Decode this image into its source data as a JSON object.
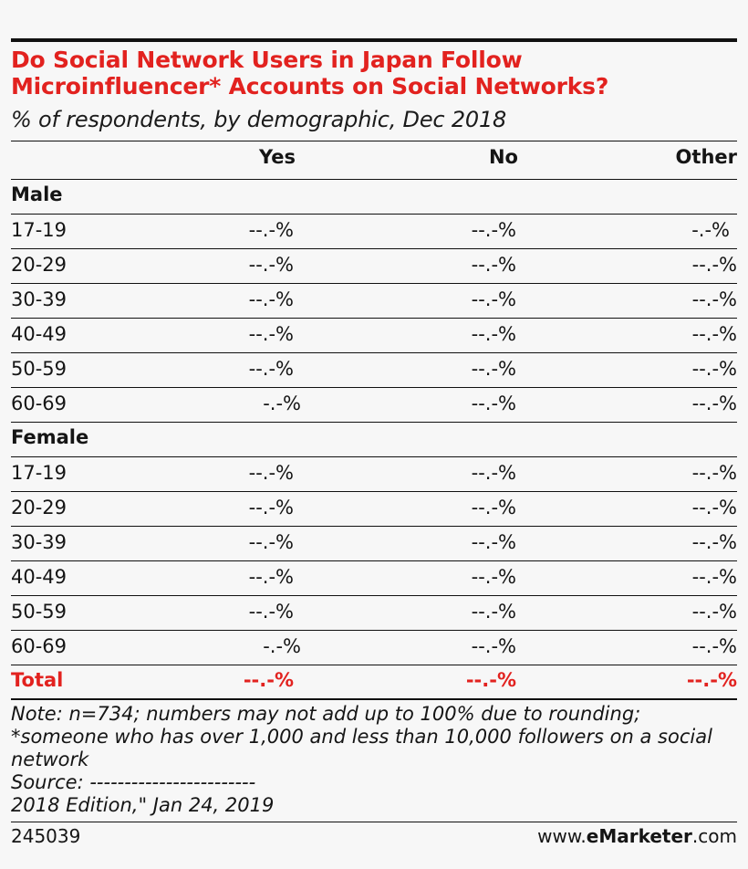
{
  "header": {
    "title": "Do Social Network Users in Japan Follow Microinfluencer* Accounts on Social Networks?",
    "subtitle": "% of respondents, by demographic, Dec 2018",
    "columns": [
      "Yes",
      "No",
      "Other"
    ]
  },
  "table": {
    "sections": [
      {
        "label": "Male",
        "rows": [
          {
            "label": "17-19",
            "values": [
              "--.-%",
              "--.-%",
              "-.-%"
            ]
          },
          {
            "label": "20-29",
            "values": [
              "--.-%",
              "--.-%",
              "--.-%"
            ]
          },
          {
            "label": "30-39",
            "values": [
              "--.-%",
              "--.-%",
              "--.-%"
            ]
          },
          {
            "label": "40-49",
            "values": [
              "--.-%",
              "--.-%",
              "--.-%"
            ]
          },
          {
            "label": "50-59",
            "values": [
              "--.-%",
              "--.-%",
              "--.-%"
            ]
          },
          {
            "label": "60-69",
            "values": [
              "-.-%",
              "--.-%",
              "--.-%"
            ]
          }
        ]
      },
      {
        "label": "Female",
        "rows": [
          {
            "label": "17-19",
            "values": [
              "--.-%",
              "--.-%",
              "--.-%"
            ]
          },
          {
            "label": "20-29",
            "values": [
              "--.-%",
              "--.-%",
              "--.-%"
            ]
          },
          {
            "label": "30-39",
            "values": [
              "--.-%",
              "--.-%",
              "--.-%"
            ]
          },
          {
            "label": "40-49",
            "values": [
              "--.-%",
              "--.-%",
              "--.-%"
            ]
          },
          {
            "label": "50-59",
            "values": [
              "--.-%",
              "--.-%",
              "--.-%"
            ]
          },
          {
            "label": "60-69",
            "values": [
              "-.-%",
              "--.-%",
              "--.-%"
            ]
          }
        ]
      }
    ],
    "total": {
      "label": "Total",
      "values": [
        "--.-%",
        "--.-%",
        "--.-%"
      ]
    }
  },
  "notes": {
    "lines": [
      "Note: n=734; numbers may not add up to 100% due to rounding;",
      "*someone who has over 1,000 and less than 10,000 followers on a social network",
      "Source: ------------------------",
      "2018 Edition,\" Jan 24, 2019"
    ]
  },
  "footer": {
    "chart_id": "245039",
    "brand_prefix": "www.",
    "brand_name": "eMarketer",
    "brand_suffix": ".com"
  },
  "colors": {
    "accent": "#e2221f",
    "text": "#151515",
    "rule": "#111111",
    "background": "#f7f7f7"
  },
  "chart_data": {
    "type": "table",
    "title": "Do Social Network Users in Japan Follow Microinfluencer* Accounts on Social Networks?",
    "subtitle": "% of respondents, by demographic, Dec 2018",
    "columns": [
      "Yes",
      "No",
      "Other"
    ],
    "sections": [
      {
        "name": "Male",
        "rows": [
          {
            "label": "17-19",
            "values": [
              "--.-%",
              "--.-%",
              "-.-%"
            ]
          },
          {
            "label": "20-29",
            "values": [
              "--.-%",
              "--.-%",
              "--.-%"
            ]
          },
          {
            "label": "30-39",
            "values": [
              "--.-%",
              "--.-%",
              "--.-%"
            ]
          },
          {
            "label": "40-49",
            "values": [
              "--.-%",
              "--.-%",
              "--.-%"
            ]
          },
          {
            "label": "50-59",
            "values": [
              "--.-%",
              "--.-%",
              "--.-%"
            ]
          },
          {
            "label": "60-69",
            "values": [
              "-.-%",
              "--.-%",
              "--.-%"
            ]
          }
        ]
      },
      {
        "name": "Female",
        "rows": [
          {
            "label": "17-19",
            "values": [
              "--.-%",
              "--.-%",
              "--.-%"
            ]
          },
          {
            "label": "20-29",
            "values": [
              "--.-%",
              "--.-%",
              "--.-%"
            ]
          },
          {
            "label": "30-39",
            "values": [
              "--.-%",
              "--.-%",
              "--.-%"
            ]
          },
          {
            "label": "40-49",
            "values": [
              "--.-%",
              "--.-%",
              "--.-%"
            ]
          },
          {
            "label": "50-59",
            "values": [
              "--.-%",
              "--.-%",
              "--.-%"
            ]
          },
          {
            "label": "60-69",
            "values": [
              "-.-%",
              "--.-%",
              "--.-%"
            ]
          }
        ]
      }
    ],
    "total": {
      "label": "Total",
      "values": [
        "--.-%",
        "--.-%",
        "--.-%"
      ]
    }
  }
}
